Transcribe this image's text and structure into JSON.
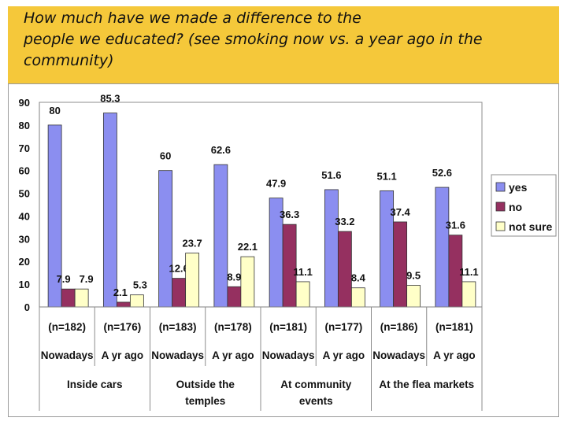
{
  "title": "How much have we made a difference to the\npeople we educated? (see smoking now vs. a year ago in the\ncommunity)",
  "colors": {
    "yes": "#8b8ef0",
    "no": "#953060",
    "not_sure": "#ffffc8",
    "title_band": "#f5c83a"
  },
  "chart_data": {
    "type": "bar",
    "title": "",
    "xlabel": "",
    "ylabel": "",
    "ylim": [
      0,
      90
    ],
    "yticks": [
      0,
      10,
      20,
      30,
      40,
      50,
      60,
      70,
      80,
      90
    ],
    "grid": false,
    "legend_position": "right",
    "categories": [
      "Nowadays",
      "A yr ago",
      "Nowadays",
      "A yr ago",
      "Nowadays",
      "A yr ago",
      "Nowadays",
      "A yr ago"
    ],
    "sample_sizes": [
      "(n=182)",
      "(n=176)",
      "(n=183)",
      "(n=178)",
      "(n=181)",
      "(n=177)",
      "(n=186)",
      "(n=181)"
    ],
    "groups": [
      {
        "label": "Inside cars"
      },
      {
        "label": "Outside the\ntemples"
      },
      {
        "label": "At community\nevents"
      },
      {
        "label": "At the flea markets"
      }
    ],
    "series": [
      {
        "name": "yes",
        "color": "#8b8ef0",
        "values": [
          80,
          85.3,
          60,
          62.6,
          47.9,
          51.6,
          51.1,
          52.6
        ]
      },
      {
        "name": "no",
        "color": "#953060",
        "values": [
          7.9,
          2.1,
          12.6,
          8.9,
          36.3,
          33.2,
          37.4,
          31.6
        ]
      },
      {
        "name": "not sure",
        "color": "#ffffc8",
        "values": [
          7.9,
          5.3,
          23.7,
          22.1,
          11.1,
          8.4,
          9.5,
          11.1
        ]
      }
    ]
  }
}
